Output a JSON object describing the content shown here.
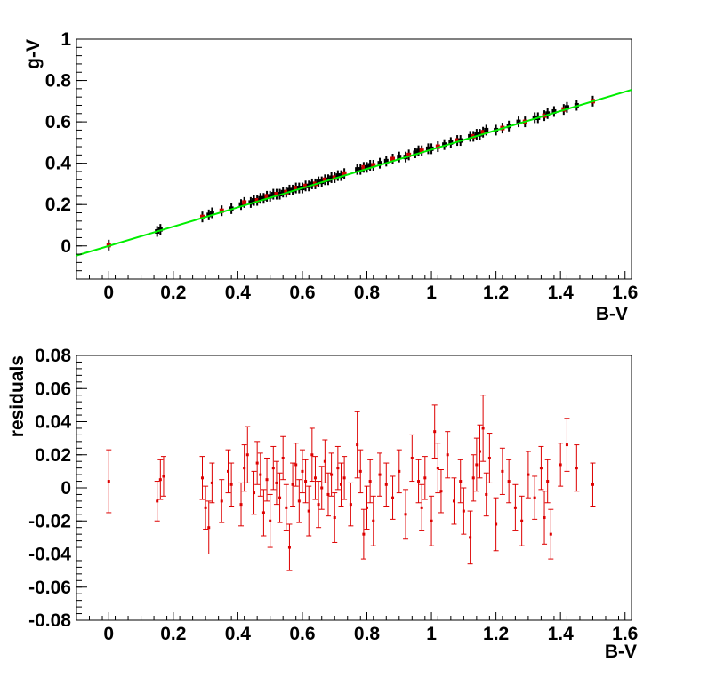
{
  "chart_data": [
    {
      "type": "scatter",
      "panel": "top",
      "xlabel": "B-V",
      "ylabel": "g-V",
      "xlim": [
        -0.1,
        1.62
      ],
      "ylim": [
        -0.16,
        1.0
      ],
      "xticks": [
        "0",
        "0.2",
        "0.4",
        "0.6",
        "0.8",
        "1",
        "1.2",
        "1.4",
        "1.6"
      ],
      "yticks": [
        "0",
        "0.2",
        "0.4",
        "0.6",
        "0.8",
        "1"
      ],
      "grid": false,
      "colors": {
        "points": "#000000",
        "highlight": "#cc0000",
        "fit": "#00ee00"
      },
      "fit": {
        "slope": 0.466,
        "intercept": 0.0,
        "x_range": [
          -0.1,
          1.62
        ]
      },
      "series": [
        {
          "x": [
            0.0,
            0.15,
            0.16,
            0.29,
            0.31,
            0.32,
            0.35,
            0.38,
            0.41,
            0.42,
            0.44,
            0.45,
            0.46,
            0.47,
            0.48,
            0.49,
            0.5,
            0.51,
            0.52,
            0.53,
            0.54,
            0.55,
            0.56,
            0.57,
            0.58,
            0.59,
            0.6,
            0.61,
            0.62,
            0.63,
            0.64,
            0.65,
            0.66,
            0.67,
            0.68,
            0.69,
            0.7,
            0.71,
            0.72,
            0.73,
            0.77,
            0.78,
            0.79,
            0.8,
            0.81,
            0.82,
            0.84,
            0.86,
            0.88,
            0.9,
            0.92,
            0.93,
            0.95,
            0.96,
            0.97,
            0.99,
            1.0,
            1.02,
            1.04,
            1.06,
            1.08,
            1.09,
            1.12,
            1.13,
            1.14,
            1.15,
            1.16,
            1.17,
            1.2,
            1.22,
            1.24,
            1.27,
            1.29,
            1.32,
            1.33,
            1.35,
            1.36,
            1.38,
            1.41,
            1.42,
            1.45,
            1.5
          ],
          "y": [
            0.004,
            0.07,
            0.08,
            0.14,
            0.15,
            0.16,
            0.17,
            0.18,
            0.2,
            0.21,
            0.21,
            0.22,
            0.22,
            0.23,
            0.23,
            0.24,
            0.24,
            0.25,
            0.25,
            0.25,
            0.26,
            0.26,
            0.27,
            0.27,
            0.28,
            0.28,
            0.28,
            0.29,
            0.29,
            0.3,
            0.3,
            0.31,
            0.31,
            0.32,
            0.32,
            0.33,
            0.33,
            0.34,
            0.34,
            0.35,
            0.37,
            0.37,
            0.38,
            0.38,
            0.39,
            0.39,
            0.4,
            0.41,
            0.42,
            0.43,
            0.43,
            0.44,
            0.45,
            0.46,
            0.46,
            0.47,
            0.47,
            0.48,
            0.49,
            0.5,
            0.51,
            0.51,
            0.53,
            0.53,
            0.54,
            0.54,
            0.55,
            0.56,
            0.56,
            0.57,
            0.58,
            0.6,
            0.6,
            0.62,
            0.62,
            0.63,
            0.64,
            0.65,
            0.66,
            0.67,
            0.68,
            0.7
          ]
        }
      ]
    },
    {
      "type": "scatter",
      "panel": "bottom",
      "xlabel": "B-V",
      "ylabel": "residuals",
      "xlim": [
        -0.1,
        1.62
      ],
      "ylim": [
        -0.08,
        0.08
      ],
      "xticks": [
        "0",
        "0.2",
        "0.4",
        "0.6",
        "0.8",
        "1",
        "1.2",
        "1.4",
        "1.6"
      ],
      "yticks": [
        "-0.08",
        "-0.06",
        "-0.04",
        "-0.02",
        "0",
        "0.02",
        "0.04",
        "0.06",
        "0.08"
      ],
      "grid": false,
      "colors": {
        "points": "#dd0000"
      },
      "series": [
        {
          "x": [
            0.0,
            0.15,
            0.16,
            0.17,
            0.29,
            0.3,
            0.31,
            0.32,
            0.35,
            0.37,
            0.38,
            0.41,
            0.42,
            0.43,
            0.45,
            0.46,
            0.47,
            0.48,
            0.49,
            0.5,
            0.51,
            0.52,
            0.53,
            0.54,
            0.55,
            0.56,
            0.57,
            0.58,
            0.59,
            0.6,
            0.61,
            0.62,
            0.63,
            0.64,
            0.65,
            0.66,
            0.67,
            0.68,
            0.69,
            0.7,
            0.71,
            0.72,
            0.73,
            0.75,
            0.77,
            0.78,
            0.79,
            0.8,
            0.81,
            0.82,
            0.84,
            0.86,
            0.88,
            0.9,
            0.92,
            0.94,
            0.96,
            0.97,
            0.98,
            1.0,
            1.01,
            1.02,
            1.03,
            1.05,
            1.07,
            1.09,
            1.1,
            1.12,
            1.13,
            1.14,
            1.15,
            1.16,
            1.17,
            1.18,
            1.2,
            1.22,
            1.24,
            1.26,
            1.28,
            1.3,
            1.32,
            1.34,
            1.35,
            1.36,
            1.37,
            1.4,
            1.42,
            1.45,
            1.5
          ],
          "y": [
            0.004,
            -0.008,
            0.005,
            0.007,
            0.006,
            -0.012,
            -0.024,
            0.003,
            -0.008,
            0.01,
            0.002,
            -0.01,
            0.012,
            0.02,
            -0.003,
            0.015,
            0.008,
            -0.015,
            0.005,
            -0.02,
            0.012,
            0.003,
            -0.006,
            0.018,
            -0.012,
            -0.036,
            0.002,
            0.014,
            -0.008,
            0.01,
            0.004,
            -0.014,
            0.02,
            0.006,
            -0.01,
            0.0,
            0.016,
            -0.004,
            0.008,
            -0.018,
            0.012,
            0.002,
            0.006,
            -0.01,
            0.026,
            0.01,
            -0.028,
            -0.012,
            0.004,
            -0.02,
            0.008,
            0.002,
            -0.006,
            0.01,
            -0.016,
            0.018,
            0.004,
            -0.012,
            0.006,
            -0.02,
            0.034,
            0.012,
            -0.002,
            0.02,
            -0.008,
            0.004,
            -0.014,
            -0.03,
            0.006,
            0.014,
            0.022,
            0.036,
            -0.004,
            0.018,
            -0.022,
            0.01,
            0.004,
            -0.012,
            -0.02,
            0.008,
            -0.006,
            0.012,
            -0.018,
            0.004,
            -0.028,
            0.014,
            0.026,
            0.012,
            0.002
          ],
          "errors": [
            0.019,
            0.012,
            0.012,
            0.012,
            0.013,
            0.013,
            0.016,
            0.012,
            0.013,
            0.013,
            0.013,
            0.013,
            0.014,
            0.017,
            0.013,
            0.013,
            0.013,
            0.014,
            0.013,
            0.016,
            0.013,
            0.013,
            0.015,
            0.013,
            0.014,
            0.014,
            0.013,
            0.013,
            0.013,
            0.013,
            0.013,
            0.015,
            0.016,
            0.013,
            0.014,
            0.013,
            0.013,
            0.013,
            0.013,
            0.015,
            0.013,
            0.013,
            0.013,
            0.013,
            0.02,
            0.013,
            0.015,
            0.013,
            0.013,
            0.015,
            0.013,
            0.013,
            0.013,
            0.013,
            0.015,
            0.014,
            0.013,
            0.014,
            0.013,
            0.015,
            0.016,
            0.015,
            0.013,
            0.014,
            0.014,
            0.013,
            0.014,
            0.016,
            0.014,
            0.016,
            0.016,
            0.02,
            0.013,
            0.015,
            0.016,
            0.014,
            0.013,
            0.014,
            0.015,
            0.014,
            0.013,
            0.013,
            0.016,
            0.013,
            0.015,
            0.013,
            0.016,
            0.014,
            0.013
          ]
        }
      ]
    }
  ]
}
